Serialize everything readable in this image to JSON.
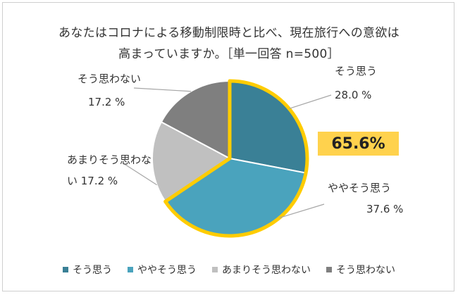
{
  "title_line1": "あなたはコロナによる移動制限時と比べ、現在旅行への意欲は",
  "title_line2": "高まっていますか。［単一回答 n=500］",
  "highlight_value": "65.6%",
  "chart_data": {
    "type": "pie",
    "categories": [
      "そう思う",
      "ややそう思う",
      "あまりそう思わない",
      "そう思わない"
    ],
    "values": [
      28.0,
      37.6,
      17.2,
      17.2
    ],
    "value_labels": [
      "28.0 %",
      "37.6 %",
      "17.2 %",
      "17.2 %"
    ],
    "colors": [
      "#3a8096",
      "#4aa3bd",
      "#c0c0c0",
      "#7f7f7f"
    ],
    "highlight_outline_color": "#ffcc00",
    "legend_position": "bottom",
    "label_lines": {
      "あまりそう思わない": [
        "あまりそう思わな",
        "い 17.2 %"
      ]
    }
  }
}
